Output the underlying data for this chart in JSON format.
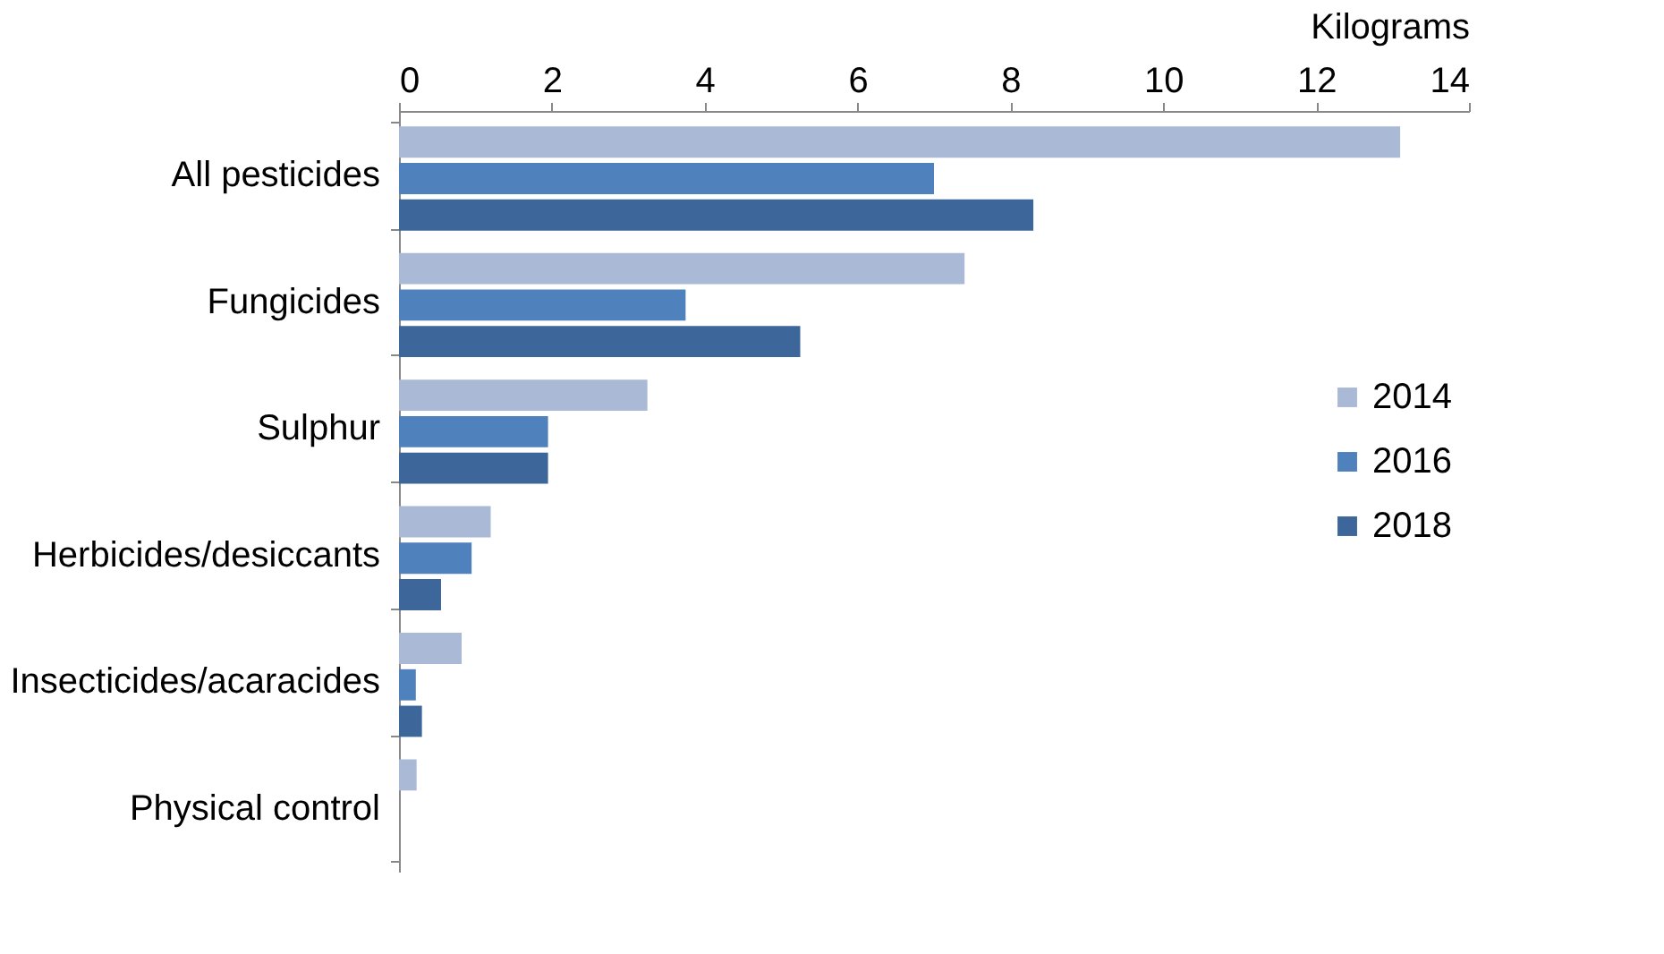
{
  "chart_data": {
    "type": "bar",
    "orientation": "horizontal",
    "xlabel": "Kilograms",
    "categories": [
      "All pesticides",
      "Fungicides",
      "Sulphur",
      "Herbicides/desiccants",
      "Insecticides/acaracides",
      "Physical control"
    ],
    "series": [
      {
        "name": "2014",
        "color": "#aab9d6",
        "values": [
          13.1,
          7.4,
          3.25,
          1.2,
          0.82,
          0.23
        ]
      },
      {
        "name": "2016",
        "color": "#4f81bd",
        "values": [
          7.0,
          3.75,
          1.95,
          0.95,
          0.22,
          null
        ]
      },
      {
        "name": "2018",
        "color": "#3d679b",
        "values": [
          8.3,
          5.25,
          1.95,
          0.55,
          0.3,
          null
        ]
      }
    ],
    "xlim": [
      0,
      14
    ],
    "xticks": [
      0,
      2,
      4,
      6,
      8,
      10,
      12,
      14
    ],
    "grid": false,
    "legend": "right"
  }
}
